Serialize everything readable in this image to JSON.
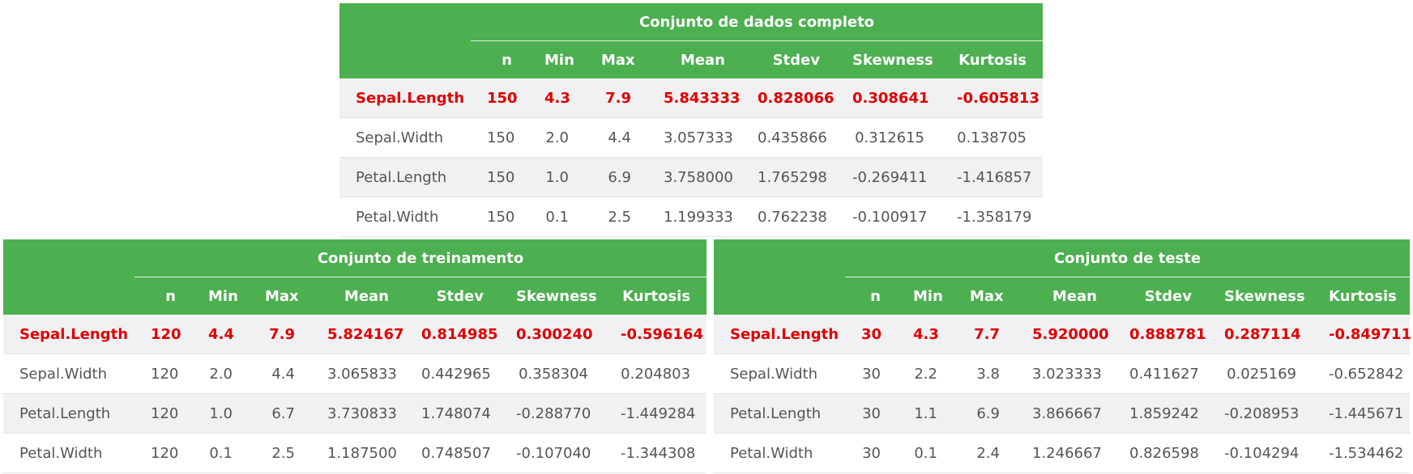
{
  "columns": [
    "n",
    "Min",
    "Max",
    "Mean",
    "Stdev",
    "Skewness",
    "Kurtosis"
  ],
  "tables": {
    "full": {
      "title": "Conjunto de dados completo",
      "rows": [
        {
          "label": "Sepal.Length",
          "values": [
            "150",
            "4.3",
            "7.9",
            "5.843333",
            "0.828066",
            "0.308641",
            "-0.605813"
          ],
          "highlight": true
        },
        {
          "label": "Sepal.Width",
          "values": [
            "150",
            "2.0",
            "4.4",
            "3.057333",
            "0.435866",
            "0.312615",
            "0.138705"
          ],
          "highlight": false
        },
        {
          "label": "Petal.Length",
          "values": [
            "150",
            "1.0",
            "6.9",
            "3.758000",
            "1.765298",
            "-0.269411",
            "-1.416857"
          ],
          "highlight": false
        },
        {
          "label": "Petal.Width",
          "values": [
            "150",
            "0.1",
            "2.5",
            "1.199333",
            "0.762238",
            "-0.100917",
            "-1.358179"
          ],
          "highlight": false
        }
      ]
    },
    "train": {
      "title": "Conjunto de treinamento",
      "rows": [
        {
          "label": "Sepal.Length",
          "values": [
            "120",
            "4.4",
            "7.9",
            "5.824167",
            "0.814985",
            "0.300240",
            "-0.596164"
          ],
          "highlight": true
        },
        {
          "label": "Sepal.Width",
          "values": [
            "120",
            "2.0",
            "4.4",
            "3.065833",
            "0.442965",
            "0.358304",
            "0.204803"
          ],
          "highlight": false
        },
        {
          "label": "Petal.Length",
          "values": [
            "120",
            "1.0",
            "6.7",
            "3.730833",
            "1.748074",
            "-0.288770",
            "-1.449284"
          ],
          "highlight": false
        },
        {
          "label": "Petal.Width",
          "values": [
            "120",
            "0.1",
            "2.5",
            "1.187500",
            "0.748507",
            "-0.107040",
            "-1.344308"
          ],
          "highlight": false
        }
      ]
    },
    "test": {
      "title": "Conjunto de teste",
      "rows": [
        {
          "label": "Sepal.Length",
          "values": [
            "30",
            "4.3",
            "7.7",
            "5.920000",
            "0.888781",
            "0.287114",
            "-0.849711"
          ],
          "highlight": true
        },
        {
          "label": "Sepal.Width",
          "values": [
            "30",
            "2.2",
            "3.8",
            "3.023333",
            "0.411627",
            "0.025169",
            "-0.652842"
          ],
          "highlight": false
        },
        {
          "label": "Petal.Length",
          "values": [
            "30",
            "1.1",
            "6.9",
            "3.866667",
            "1.859242",
            "-0.208953",
            "-1.445671"
          ],
          "highlight": false
        },
        {
          "label": "Petal.Width",
          "values": [
            "30",
            "0.1",
            "2.4",
            "1.246667",
            "0.826598",
            "-0.104294",
            "-1.534462"
          ],
          "highlight": false
        }
      ]
    }
  },
  "colors": {
    "header_bg": "#4caf50",
    "highlight_text": "#e00000",
    "stripe_bg": "#f1f1f3"
  }
}
